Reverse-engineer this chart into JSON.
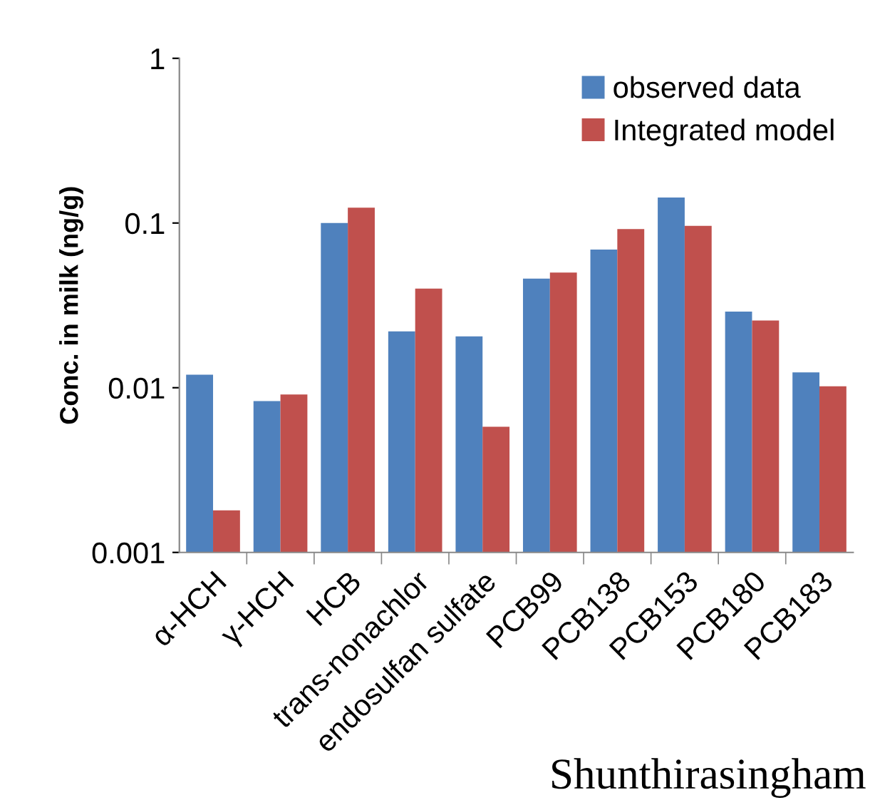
{
  "chart_data": {
    "type": "bar",
    "ylabel": "Conc. in milk (ng/g)",
    "categories": [
      "α-HCH",
      "γ-HCH",
      "HCB",
      "trans-nonachlor",
      "endosulfan sulfate",
      "PCB99",
      "PCB138",
      "PCB153",
      "PCB180",
      "PCB183"
    ],
    "series": [
      {
        "name": "observed data",
        "color": "#4f81bd",
        "values": [
          0.012,
          0.0083,
          0.1,
          0.022,
          0.0205,
          0.046,
          0.069,
          0.143,
          0.029,
          0.0124
        ]
      },
      {
        "name": "Integrated model",
        "color": "#c0504d",
        "values": [
          0.0018,
          0.0091,
          0.124,
          0.04,
          0.0058,
          0.05,
          0.092,
          0.096,
          0.0256,
          0.0102
        ]
      }
    ],
    "log": "y",
    "ylim": [
      0.001,
      1
    ],
    "yticks": [
      0.001,
      0.01,
      0.1,
      1
    ],
    "grid": false,
    "legend": "top right",
    "annotations": [
      "Shunthirasingham"
    ]
  }
}
